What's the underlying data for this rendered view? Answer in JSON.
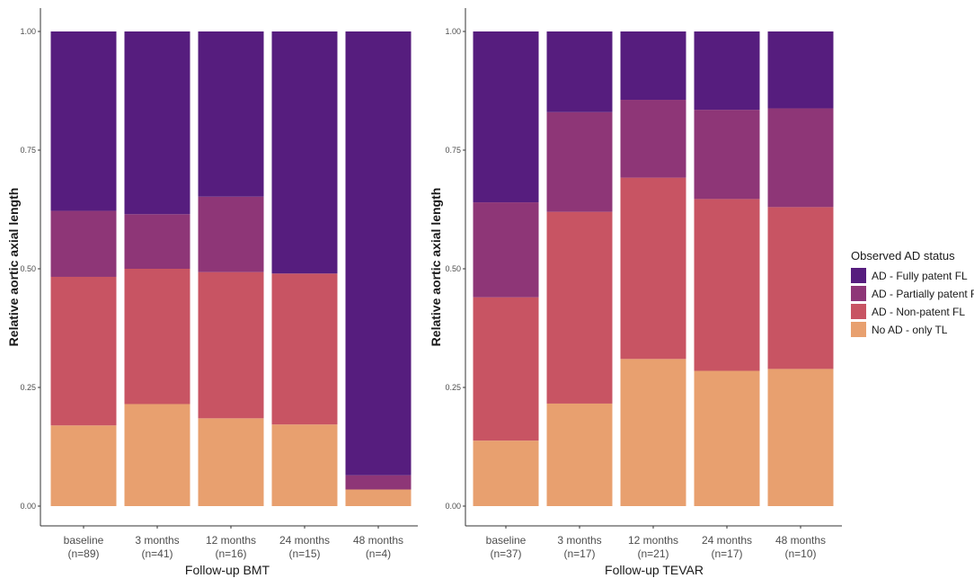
{
  "legend": {
    "title": "Observed AD status",
    "items": [
      {
        "key": "fully",
        "label": "AD - Fully patent FL",
        "color": "#561d7e"
      },
      {
        "key": "partial",
        "label": "AD - Partially patent FL",
        "color": "#8e3677"
      },
      {
        "key": "nonpatent",
        "label": "AD - Non-patent FL",
        "color": "#c85463"
      },
      {
        "key": "notl",
        "label": "No AD - only TL",
        "color": "#e8a06f"
      }
    ]
  },
  "chart_data": [
    {
      "type": "bar",
      "stacked": true,
      "panel": "BMT",
      "xlabel": "Follow-up BMT",
      "ylabel": "Relative aortic axial length",
      "ylim": [
        0,
        1
      ],
      "yticks": [
        "0.00",
        "0.25",
        "0.50",
        "0.75",
        "1.00"
      ],
      "categories": [
        {
          "label": "baseline",
          "n": "(n=89)"
        },
        {
          "label": "3 months",
          "n": "(n=41)"
        },
        {
          "label": "12 months",
          "n": "(n=16)"
        },
        {
          "label": "24 months",
          "n": "(n=15)"
        },
        {
          "label": "48 months",
          "n": "(n=4)"
        }
      ],
      "series": [
        {
          "name": "No AD - only TL",
          "values": [
            0.17,
            0.215,
            0.185,
            0.172,
            0.035
          ]
        },
        {
          "name": "AD - Non-patent FL",
          "values": [
            0.313,
            0.285,
            0.308,
            0.318,
            0.0
          ]
        },
        {
          "name": "AD - Partially patent FL",
          "values": [
            0.139,
            0.115,
            0.159,
            0.0,
            0.03
          ]
        },
        {
          "name": "AD - Fully patent FL",
          "values": [
            0.378,
            0.385,
            0.348,
            0.51,
            0.935
          ]
        }
      ]
    },
    {
      "type": "bar",
      "stacked": true,
      "panel": "TEVAR",
      "xlabel": "Follow-up TEVAR",
      "ylabel": "Relative aortic axial length",
      "ylim": [
        0,
        1
      ],
      "yticks": [
        "0.00",
        "0.25",
        "0.50",
        "0.75",
        "1.00"
      ],
      "categories": [
        {
          "label": "baseline",
          "n": "(n=37)"
        },
        {
          "label": "3 months",
          "n": "(n=17)"
        },
        {
          "label": "12 months",
          "n": "(n=21)"
        },
        {
          "label": "24 months",
          "n": "(n=17)"
        },
        {
          "label": "48 months",
          "n": "(n=10)"
        }
      ],
      "series": [
        {
          "name": "No AD - only TL",
          "values": [
            0.138,
            0.216,
            0.31,
            0.285,
            0.289
          ]
        },
        {
          "name": "AD - Non-patent FL",
          "values": [
            0.302,
            0.404,
            0.382,
            0.362,
            0.341
          ]
        },
        {
          "name": "AD - Partially patent FL",
          "values": [
            0.2,
            0.21,
            0.164,
            0.188,
            0.208
          ]
        },
        {
          "name": "AD - Fully patent FL",
          "values": [
            0.36,
            0.17,
            0.144,
            0.165,
            0.162
          ]
        }
      ]
    }
  ]
}
